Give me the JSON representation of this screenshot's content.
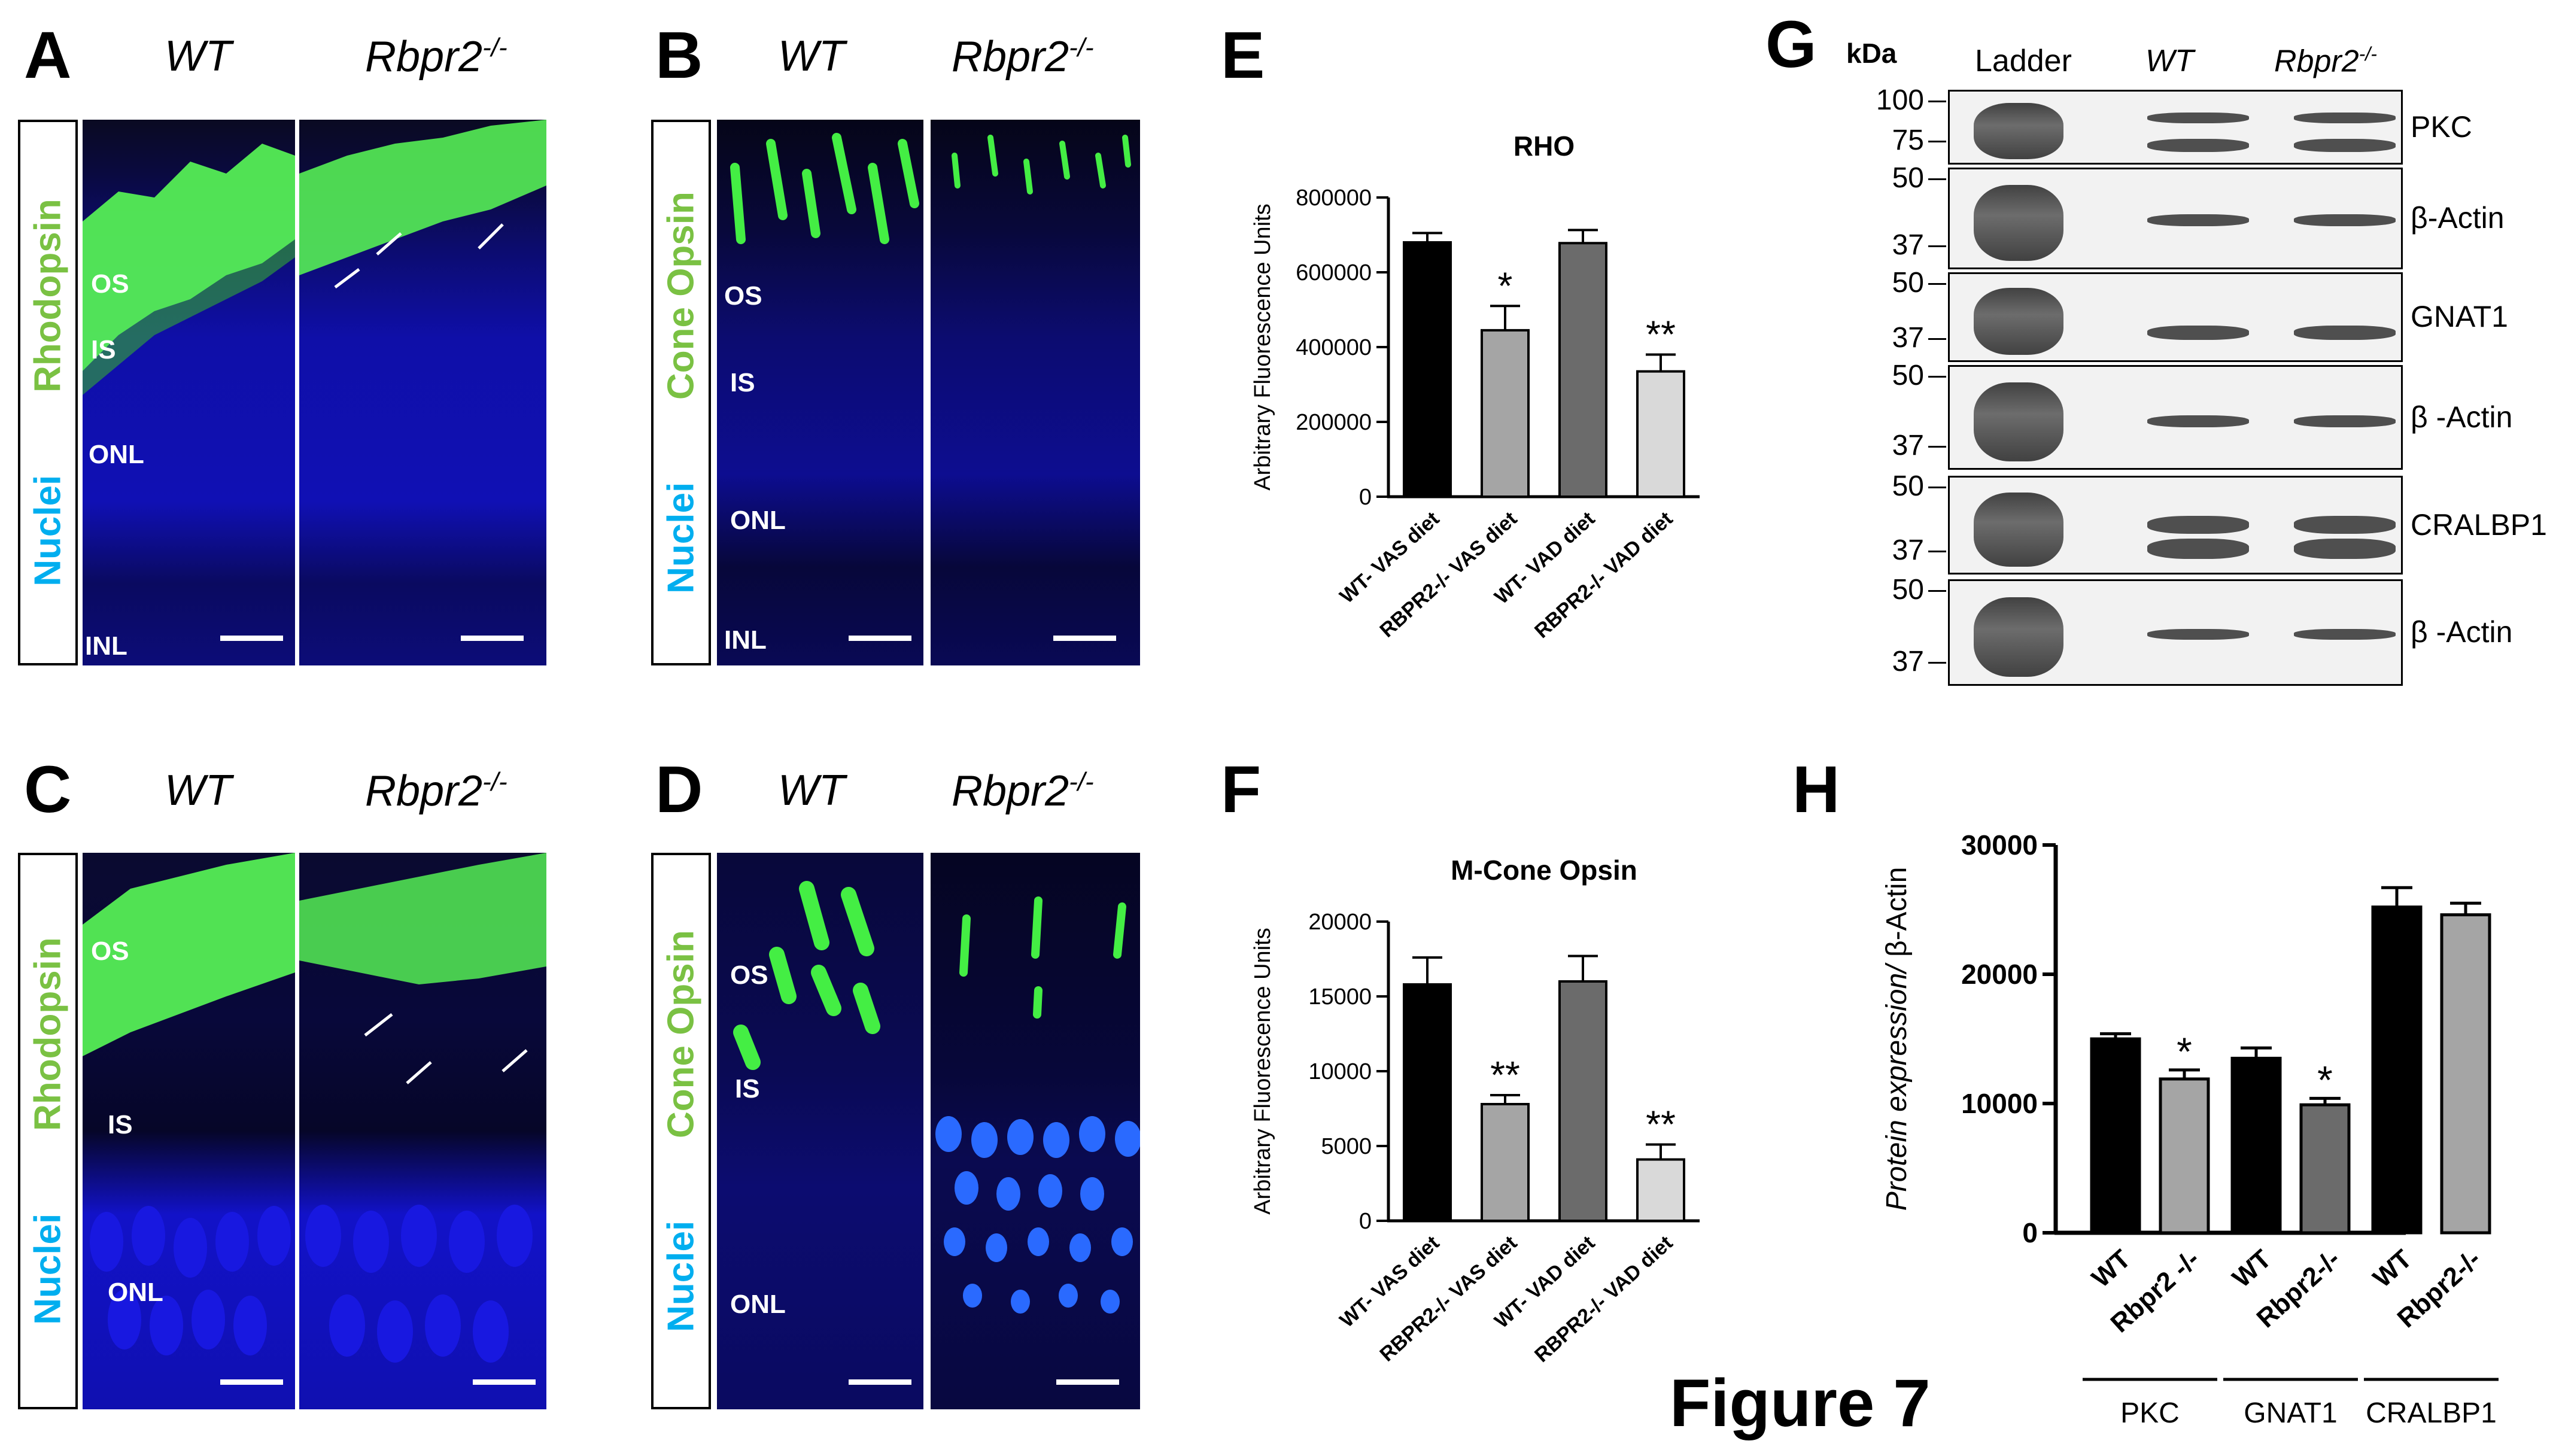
{
  "figure_title": "Figure 7",
  "panels": {
    "A": {
      "label": "A",
      "col1": "WT",
      "col2_base": "Rbpr2",
      "col2_sup": "-/-",
      "stain_top": "Nuclei",
      "stain_bottom": "Rhodopsin",
      "layers": [
        "OS",
        "IS",
        "ONL",
        "INL"
      ]
    },
    "B": {
      "label": "B",
      "col1": "WT",
      "col2_base": "Rbpr2",
      "col2_sup": "-/-",
      "stain_top": "Nuclei",
      "stain_bottom": "Cone Opsin",
      "layers": [
        "OS",
        "IS",
        "ONL",
        "INL"
      ]
    },
    "C": {
      "label": "C",
      "col1": "WT",
      "col2_base": "Rbpr2",
      "col2_sup": "-/-",
      "stain_top": "Nuclei",
      "stain_bottom": "Rhodopsin",
      "layers": [
        "OS",
        "IS",
        "ONL"
      ]
    },
    "D": {
      "label": "D",
      "col1": "WT",
      "col2_base": "Rbpr2",
      "col2_sup": "-/-",
      "stain_top": "Nuclei",
      "stain_bottom": "Cone Opsin",
      "layers": [
        "OS",
        "IS",
        "ONL"
      ]
    },
    "E": {
      "label": "E"
    },
    "F": {
      "label": "F"
    },
    "G": {
      "label": "G",
      "kda": "kDa",
      "ladder": "Ladder",
      "wt": "WT",
      "ko_base": "Rbpr2",
      "ko_sup": "-/-",
      "blots": [
        {
          "name": "PKC",
          "markers": [
            "100",
            "75"
          ]
        },
        {
          "name": "β-Actin",
          "markers": [
            "50",
            "37"
          ]
        },
        {
          "name": "GNAT1",
          "markers": [
            "50",
            "37"
          ]
        },
        {
          "name": "β -Actin",
          "markers": [
            "50",
            "37"
          ]
        },
        {
          "name": "CRALBP1",
          "markers": [
            "50",
            "37"
          ]
        },
        {
          "name": "β -Actin",
          "markers": [
            "50",
            "37"
          ]
        }
      ]
    },
    "H": {
      "label": "H"
    }
  },
  "chart_data": [
    {
      "type": "bar",
      "panel": "E",
      "title": "RHO",
      "ylabel": "Arbitrary Fluorescence Units",
      "categories": [
        "WT- VAS diet",
        "RBPR2-/- VAS diet",
        "WT- VAD diet",
        "RBPR2-/- VAD diet"
      ],
      "values": [
        680000,
        445000,
        678000,
        335000
      ],
      "errors": [
        25000,
        65000,
        35000,
        45000
      ],
      "significance": [
        "",
        "*",
        "",
        "**"
      ],
      "bar_colors": [
        "#000000",
        "#a5a5a5",
        "#6b6b6b",
        "#d9d9d9"
      ],
      "ylim": [
        0,
        800000
      ],
      "yticks": [
        0,
        200000,
        400000,
        600000,
        800000
      ],
      "ytick_labels": [
        "0",
        "200000",
        "400000",
        "600000",
        "800000"
      ]
    },
    {
      "type": "bar",
      "panel": "F",
      "title": "M-Cone Opsin",
      "ylabel": "Arbitrary Fluorescence Units",
      "categories": [
        "WT- VAS diet",
        "RBPR2-/- VAS diet",
        "WT- VAD diet",
        "RBPR2-/- VAD diet"
      ],
      "values": [
        15800,
        7800,
        16000,
        4100
      ],
      "errors": [
        1800,
        600,
        1700,
        1000
      ],
      "significance": [
        "",
        "**",
        "",
        "**"
      ],
      "bar_colors": [
        "#000000",
        "#a5a5a5",
        "#6b6b6b",
        "#d9d9d9"
      ],
      "ylim": [
        0,
        20000
      ],
      "yticks": [
        0,
        5000,
        10000,
        15000,
        20000
      ],
      "ytick_labels": [
        "0",
        "5000",
        "10000",
        "15000",
        "20000"
      ]
    },
    {
      "type": "bar",
      "panel": "H",
      "title": "",
      "ylabel_italic": "Protein expression/",
      "ylabel_rest": " β-Actin",
      "categories": [
        "WT",
        "Rbpr2 -/-",
        "WT",
        "Rbpr2-/-",
        "WT",
        "Rbpr2-/-"
      ],
      "groups": [
        "PKC",
        "GNAT1",
        "CRALBP1"
      ],
      "values": [
        15000,
        11900,
        13500,
        9900,
        25200,
        24600
      ],
      "errors": [
        400,
        700,
        800,
        500,
        1500,
        900
      ],
      "significance": [
        "",
        "*",
        "",
        "*",
        "",
        ""
      ],
      "bar_colors": [
        "#000000",
        "#a5a5a5",
        "#000000",
        "#6b6b6b",
        "#000000",
        "#a5a5a5"
      ],
      "ylim": [
        0,
        30000
      ],
      "yticks": [
        0,
        10000,
        20000,
        30000
      ],
      "ytick_labels": [
        "0",
        "10000",
        "20000",
        "30000"
      ]
    }
  ]
}
